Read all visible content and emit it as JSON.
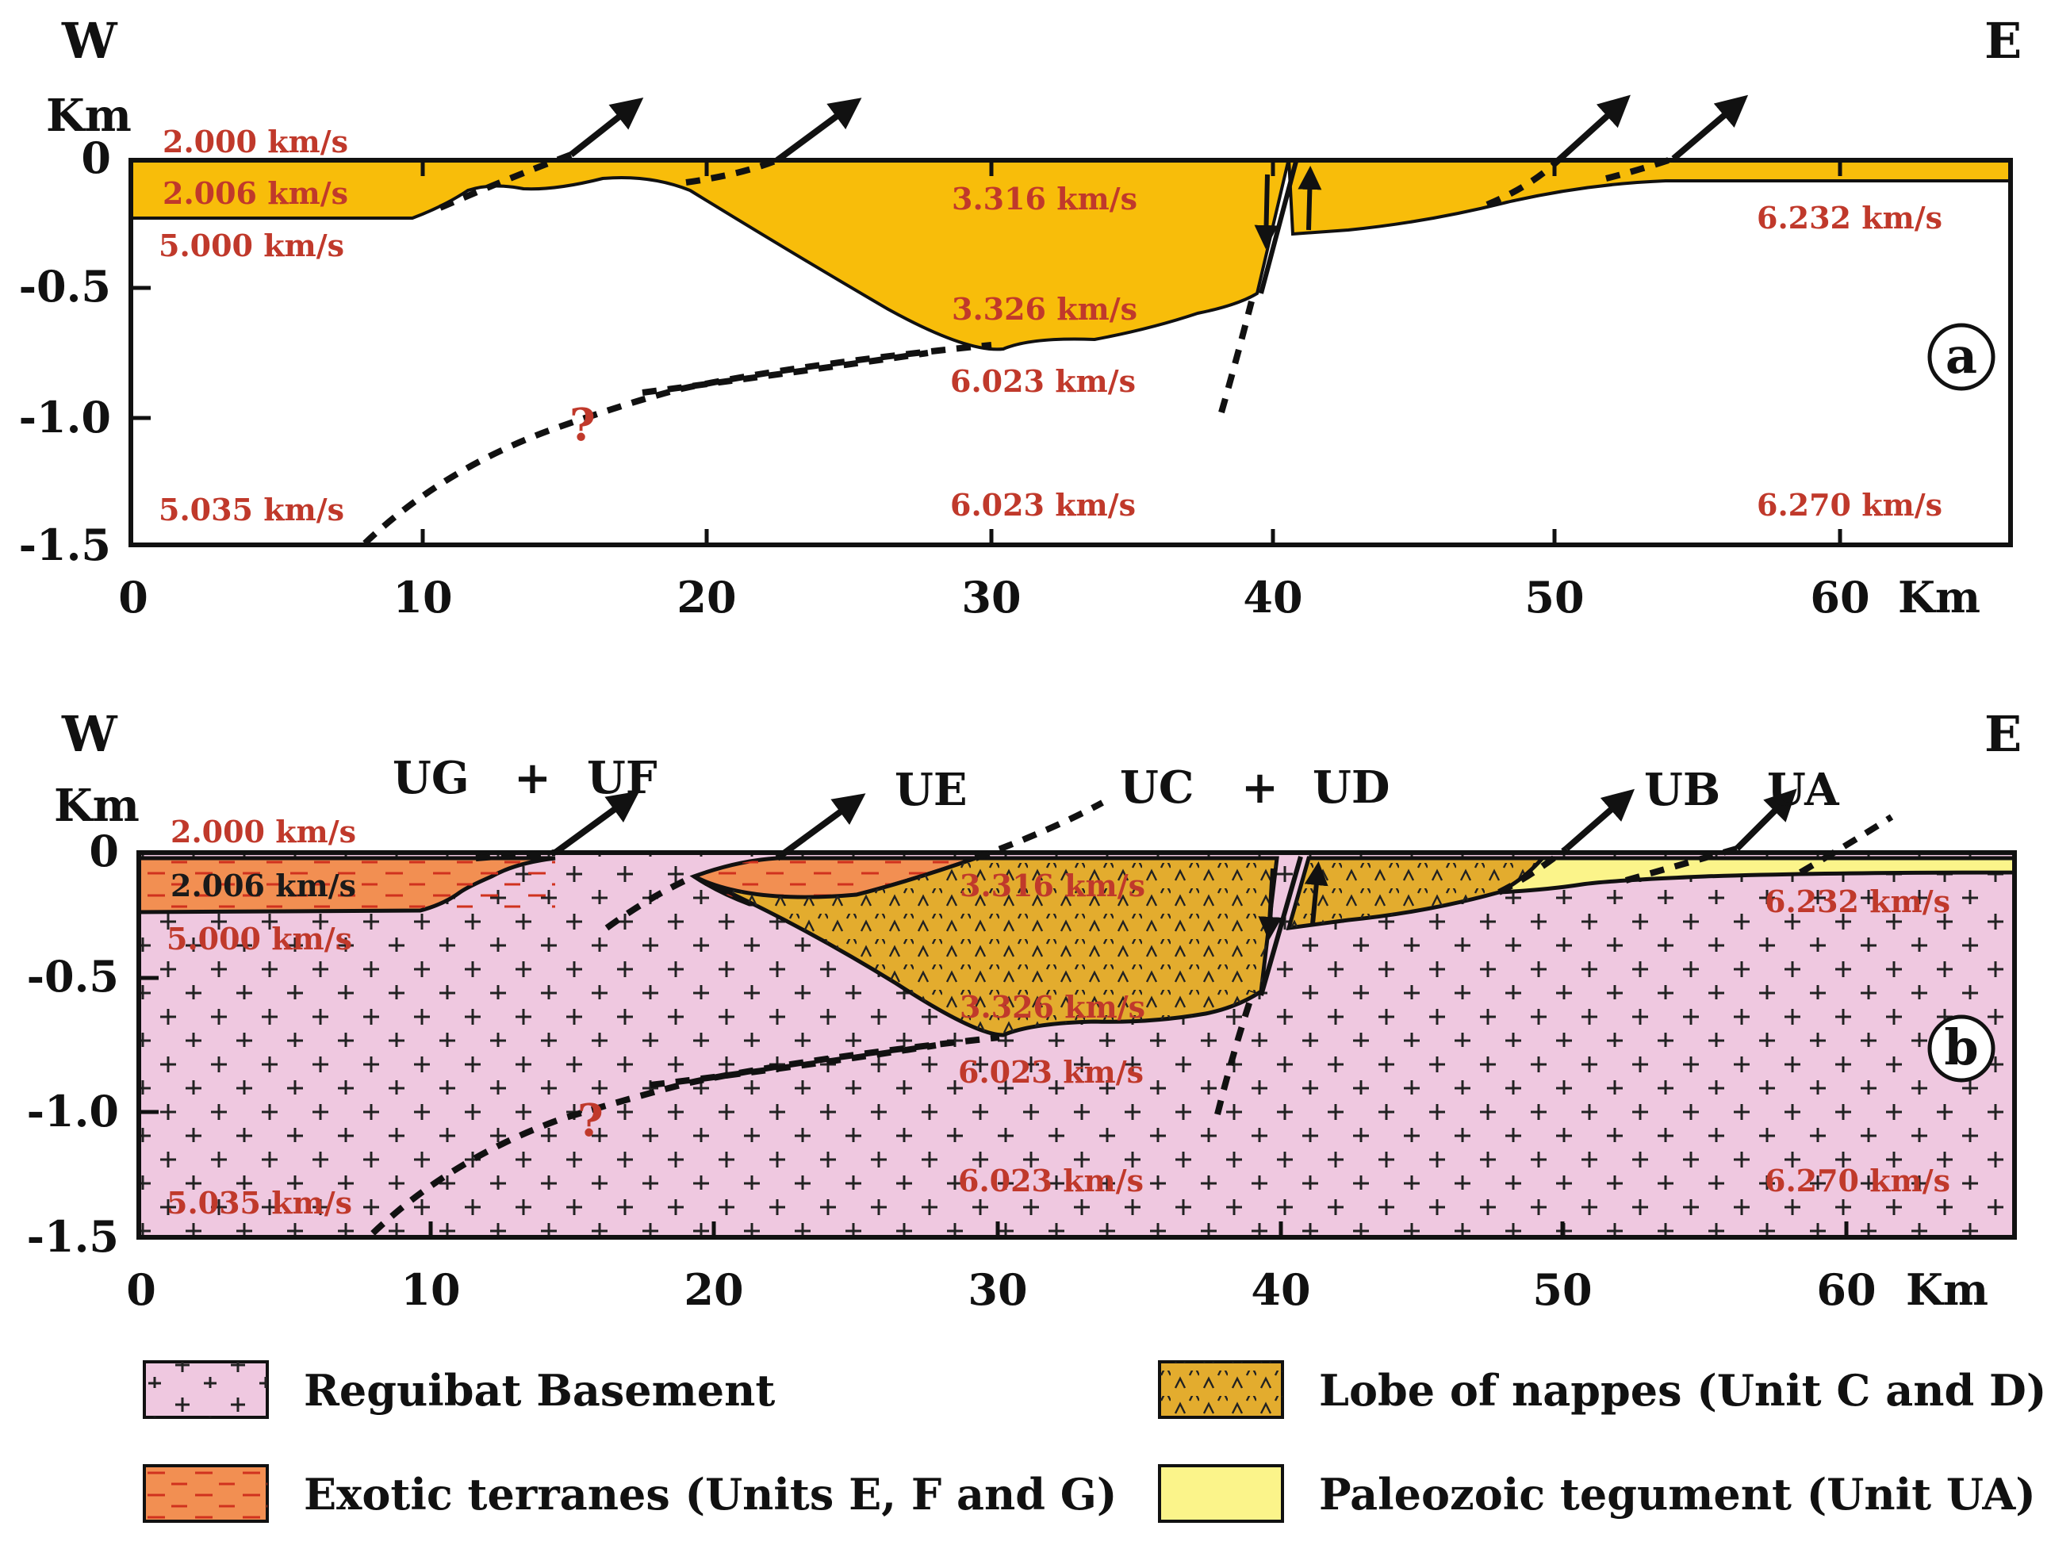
{
  "panels": [
    {
      "label": "a",
      "west": "W",
      "east": "E",
      "yunit": "Km",
      "yticks": [
        "0",
        "-0.5",
        "-1.0",
        "-1.5"
      ],
      "xticks": [
        "0",
        "10",
        "20",
        "30",
        "40",
        "50",
        "60"
      ],
      "xunit": "Km",
      "velocities": [
        "2.000 km/s",
        "2.006 km/s",
        "5.000 km/s",
        "3.316 km/s",
        "3.326 km/s",
        "6.023 km/s",
        "6.232 km/s",
        "5.035 km/s",
        "6.023 km/s",
        "6.270 km/s"
      ],
      "question": "?"
    },
    {
      "label": "b",
      "west": "W",
      "east": "E",
      "yunit": "Km",
      "yticks": [
        "0",
        "-0.5",
        "-1.0",
        "-1.5"
      ],
      "xticks": [
        "0",
        "10",
        "20",
        "30",
        "40",
        "50",
        "60"
      ],
      "xunit": "Km",
      "velocities": [
        "2.000 km/s",
        "2.006 km/s",
        "5.000 km/s",
        "3.316 km/s",
        "3.326 km/s",
        "6.023 km/s",
        "6.232 km/s",
        "5.035 km/s",
        "6.023 km/s",
        "6.270 km/s"
      ],
      "question": "?",
      "units": {
        "ug": "UG",
        "plus1": "+",
        "uf": "UF",
        "ue": "UE",
        "uc": "UC",
        "plus2": "+",
        "ud": "UD",
        "ub": "UB",
        "ua": "UA"
      }
    }
  ],
  "legend": [
    {
      "label": "Reguibat Basement",
      "color": "#efc8e0"
    },
    {
      "label": "Lobe of nappes (Unit C and D)",
      "color": "#e3ac2e"
    },
    {
      "label": "Exotic terranes (Units E, F and G)",
      "color": "#f28f52"
    },
    {
      "label": "Paleozoic tegument (Unit UA)",
      "color": "#fbf48a"
    }
  ],
  "colors": {
    "sediment_a": "#f8bd0a",
    "nappes": "#e3ac2e",
    "exotic": "#f28f52",
    "basement": "#efc8e0",
    "tegument": "#fbf48a",
    "velocity_text": "#c0392b"
  }
}
